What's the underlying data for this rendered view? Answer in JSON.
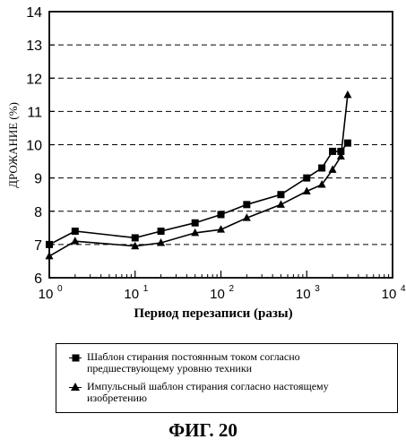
{
  "chart_data": {
    "type": "line",
    "xscale": "log",
    "xlim": [
      1,
      10000
    ],
    "ylim": [
      6,
      14
    ],
    "yticks": [
      6,
      7,
      8,
      9,
      10,
      11,
      12,
      13,
      14
    ],
    "xticks": [
      1,
      10,
      100,
      1000,
      10000
    ],
    "xtick_labels": [
      {
        "base": "10",
        "exp": "0"
      },
      {
        "base": "10",
        "exp": "1"
      },
      {
        "base": "10",
        "exp": "2"
      },
      {
        "base": "10",
        "exp": "3"
      },
      {
        "base": "10",
        "exp": "4"
      }
    ],
    "grid": "horizontal dashed",
    "xlabel": "Период перезаписи (разы)",
    "ylabel": "ДРОЖАНИЕ (%)",
    "series": [
      {
        "name": "Шаблон стирания постоянным током согласно предшествующему уровню техники",
        "marker": "square",
        "x": [
          1,
          2,
          10,
          20,
          50,
          100,
          200,
          500,
          1000,
          1500,
          2000,
          2500,
          3000
        ],
        "y": [
          7.0,
          7.4,
          7.2,
          7.4,
          7.65,
          7.9,
          8.2,
          8.5,
          9.0,
          9.3,
          9.8,
          9.8,
          10.05
        ]
      },
      {
        "name": "Импульсный шаблон стирания согласно настоящему изобретению",
        "marker": "triangle",
        "x": [
          1,
          2,
          10,
          20,
          50,
          100,
          200,
          500,
          1000,
          1500,
          2000,
          2500,
          3000
        ],
        "y": [
          6.65,
          7.1,
          6.95,
          7.05,
          7.35,
          7.45,
          7.8,
          8.2,
          8.6,
          8.8,
          9.25,
          9.65,
          11.5
        ]
      }
    ]
  },
  "figure": {
    "caption": "ФИГ. 20"
  }
}
